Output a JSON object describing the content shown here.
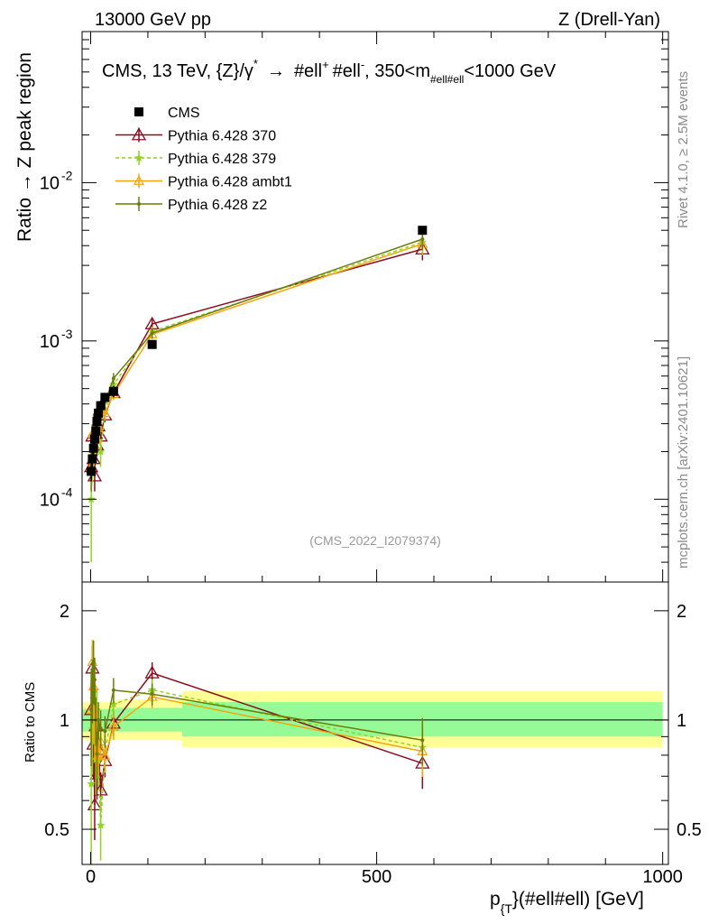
{
  "header": {
    "left": "13000 GeV pp",
    "right": "Z (Drell-Yan)"
  },
  "side": {
    "rivet": "Rivet 4.1.0, ≥ 2.5M events",
    "mcplots": "mcplots.cern.ch [arXiv:2401.10621]"
  },
  "colors": {
    "cms": "#000000",
    "p370": "#8b0a1e",
    "p379": "#8fd41e",
    "ambt1": "#f5a50a",
    "z2": "#6b7d0a",
    "band_inner": "#96fa96",
    "band_outer": "#ffff96"
  },
  "chart_data": {
    "type": "line",
    "title": "CMS, 13 TeV, {Z}/γ* → #ell⁺ #ell⁻, 350<m_{#ell#ell}<1000 GeV",
    "title_main": "CMS, 13 TeV, {Z}/γ",
    "title_star": "*",
    "title_arrow": "→",
    "title_l1": "#ell",
    "title_plus": "+",
    "title_l2": "#ell",
    "title_minus": "-",
    "title_range_a": ", 350<m",
    "title_sub": "#ell#ell",
    "title_range_b": "<1000 GeV",
    "watermark": "(CMS_2022_I2079374)",
    "xlabel_main": "p",
    "xlabel_sub": "{T",
    "xlabel_rest": "}(#ell#ell) [GeV]",
    "ylabel": "Ratio → Z peak region",
    "ratio_ylabel": "Ratio to CMS",
    "xlim": [
      -15,
      1010
    ],
    "ylim": [
      3e-05,
      0.09
    ],
    "ratio_ylim": [
      0.4,
      2.4
    ],
    "x_ticks": [
      {
        "v": 0,
        "label": "0"
      },
      {
        "v": 500,
        "label": "500"
      },
      {
        "v": 1000,
        "label": "1000"
      }
    ],
    "y_ticks": [
      {
        "v": 0.0001,
        "base": "10",
        "exp": "-4"
      },
      {
        "v": 0.001,
        "base": "10",
        "exp": "-3"
      },
      {
        "v": 0.01,
        "base": "10",
        "exp": "-2"
      }
    ],
    "ratio_ticks": [
      {
        "v": 0.5,
        "label": "0.5"
      },
      {
        "v": 1,
        "label": "1"
      },
      {
        "v": 2,
        "label": "2"
      }
    ],
    "x": [
      1,
      3,
      5,
      7,
      9,
      11,
      13.5,
      17.5,
      25,
      40,
      107.5,
      580
    ],
    "data": {
      "name": "CMS",
      "y": [
        0.00015,
        0.00018,
        0.00021,
        0.00024,
        0.00027,
        0.00031,
        0.00035,
        0.00039,
        0.00044,
        0.00048,
        0.00095,
        0.005
      ],
      "err": [
        2e-05,
        2e-05,
        2e-05,
        3e-05,
        3e-05,
        3e-05,
        3e-05,
        3e-05,
        3e-05,
        4e-05,
        5e-05,
        0.0003
      ]
    },
    "bands": {
      "inner": [
        {
          "x0": -15,
          "x1": 45,
          "lo": 0.93,
          "hi": 1.07
        },
        {
          "x0": 45,
          "x1": 160,
          "lo": 0.93,
          "hi": 1.08
        },
        {
          "x0": 160,
          "x1": 1000,
          "lo": 0.9,
          "hi": 1.12
        }
      ],
      "outer": [
        {
          "x0": -15,
          "x1": 45,
          "lo": 0.88,
          "hi": 1.12
        },
        {
          "x0": 45,
          "x1": 160,
          "lo": 0.88,
          "hi": 1.14
        },
        {
          "x0": 160,
          "x1": 1000,
          "lo": 0.84,
          "hi": 1.2
        }
      ]
    },
    "series": [
      {
        "name": "Pythia 6.428 370",
        "color_key": "p370",
        "marker": "triangle",
        "dash": false,
        "y": [
          0.00016,
          0.00025,
          0.00018,
          0.00014,
          0.00026,
          0.00022,
          0.00029,
          0.00025,
          0.00034,
          0.00047,
          0.00128,
          0.0038
        ],
        "err_frac": [
          0.2,
          0.15,
          0.2,
          0.2,
          0.15,
          0.15,
          0.15,
          0.12,
          0.1,
          0.08,
          0.07,
          0.15
        ]
      },
      {
        "name": "Pythia 6.428 379",
        "color_key": "p379",
        "marker": "star",
        "dash": true,
        "y": [
          0.0001,
          0.00017,
          0.00024,
          0.00029,
          0.00021,
          0.00033,
          0.00027,
          0.0002,
          0.00036,
          0.00053,
          0.00115,
          0.0042
        ],
        "err_frac": [
          0.6,
          0.25,
          0.25,
          0.2,
          0.2,
          0.15,
          0.15,
          0.2,
          0.12,
          0.08,
          0.07,
          0.15
        ]
      },
      {
        "name": "Pythia 6.428 ambt1",
        "color_key": "ambt1",
        "marker": "triangle-small",
        "dash": false,
        "y": [
          0.00016,
          0.00026,
          0.00026,
          0.00022,
          0.00024,
          0.0003,
          0.00028,
          0.00034,
          0.00035,
          0.00046,
          0.0011,
          0.0041
        ],
        "err_frac": [
          0.2,
          0.15,
          0.15,
          0.15,
          0.15,
          0.12,
          0.12,
          0.1,
          0.1,
          0.08,
          0.07,
          0.15
        ]
      },
      {
        "name": "Pythia 6.428 z2",
        "color_key": "z2",
        "marker": "dot",
        "dash": false,
        "y": [
          0.00016,
          0.00022,
          0.00029,
          0.00031,
          0.00027,
          0.00025,
          0.00035,
          0.00037,
          0.00041,
          0.00058,
          0.00112,
          0.0044
        ],
        "err_frac": [
          0.3,
          0.2,
          0.2,
          0.15,
          0.15,
          0.15,
          0.12,
          0.12,
          0.1,
          0.08,
          0.07,
          0.15
        ]
      }
    ]
  }
}
